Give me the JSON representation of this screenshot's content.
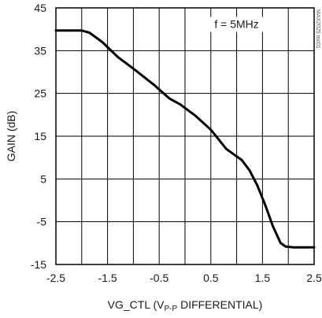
{
  "chart_data": {
    "type": "line",
    "title": "",
    "annotation": "f = 5MHz",
    "side_code": "MAX2025 toc01",
    "xlabel": "VG_CTL (V",
    "xlabel_sub": "P-P",
    "xlabel_suffix": " DIFFERENTIAL)",
    "ylabel": "GAIN (dB)",
    "xlim": [
      -2.5,
      2.5
    ],
    "ylim": [
      -15,
      45
    ],
    "xticks": [
      -2.5,
      -1.5,
      -0.5,
      0.5,
      1.5,
      2.5
    ],
    "xtick_labels": [
      "-2.5",
      "-1.5",
      "-0.5",
      "0.5",
      "1.5",
      "2.5"
    ],
    "yticks": [
      -15,
      -5,
      5,
      15,
      25,
      35,
      45
    ],
    "ytick_labels": [
      "-15",
      "-5",
      "5",
      "15",
      "25",
      "35",
      "45"
    ],
    "grid": true,
    "line_color": "#000000",
    "series": [
      {
        "x": [
          -2.5,
          -2.0,
          -1.85,
          -1.6,
          -1.3,
          -1.0,
          -0.6,
          -0.3,
          -0.1,
          0.2,
          0.5,
          0.8,
          1.1,
          1.25,
          1.4,
          1.55,
          1.7,
          1.85,
          1.95,
          2.1,
          2.5
        ],
        "y": [
          39.7,
          39.7,
          39.2,
          37.0,
          33.5,
          30.8,
          27.0,
          23.8,
          22.5,
          19.8,
          16.5,
          12.0,
          9.4,
          7.0,
          3.5,
          -1.0,
          -6.0,
          -10.0,
          -10.8,
          -11.0,
          -11.0
        ]
      }
    ]
  }
}
